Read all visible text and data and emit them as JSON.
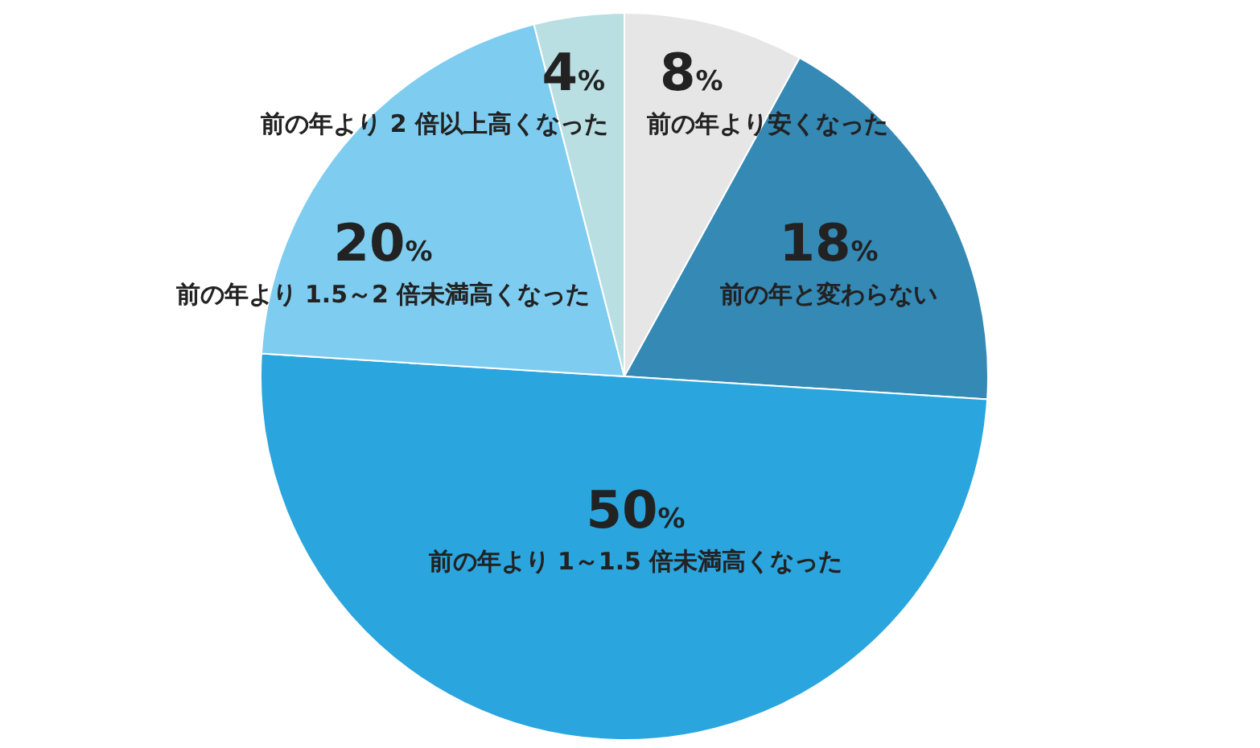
{
  "chart_data": {
    "type": "pie",
    "categories": [
      "前の年より安くなった",
      "前の年と変わらない",
      "前の年より 1～1.5 倍未満高くなった",
      "前の年より 1.5～2 倍未満高くなった",
      "前の年より 2 倍以上高くなった"
    ],
    "values": [
      8,
      18,
      50,
      20,
      4
    ],
    "value_labels": [
      "8%",
      "18%",
      "50%",
      "20%",
      "4%"
    ],
    "colors": [
      "#e6e6e6",
      "#3589b5",
      "#2aa5de",
      "#7ecdf0",
      "#b9dfe3"
    ]
  }
}
